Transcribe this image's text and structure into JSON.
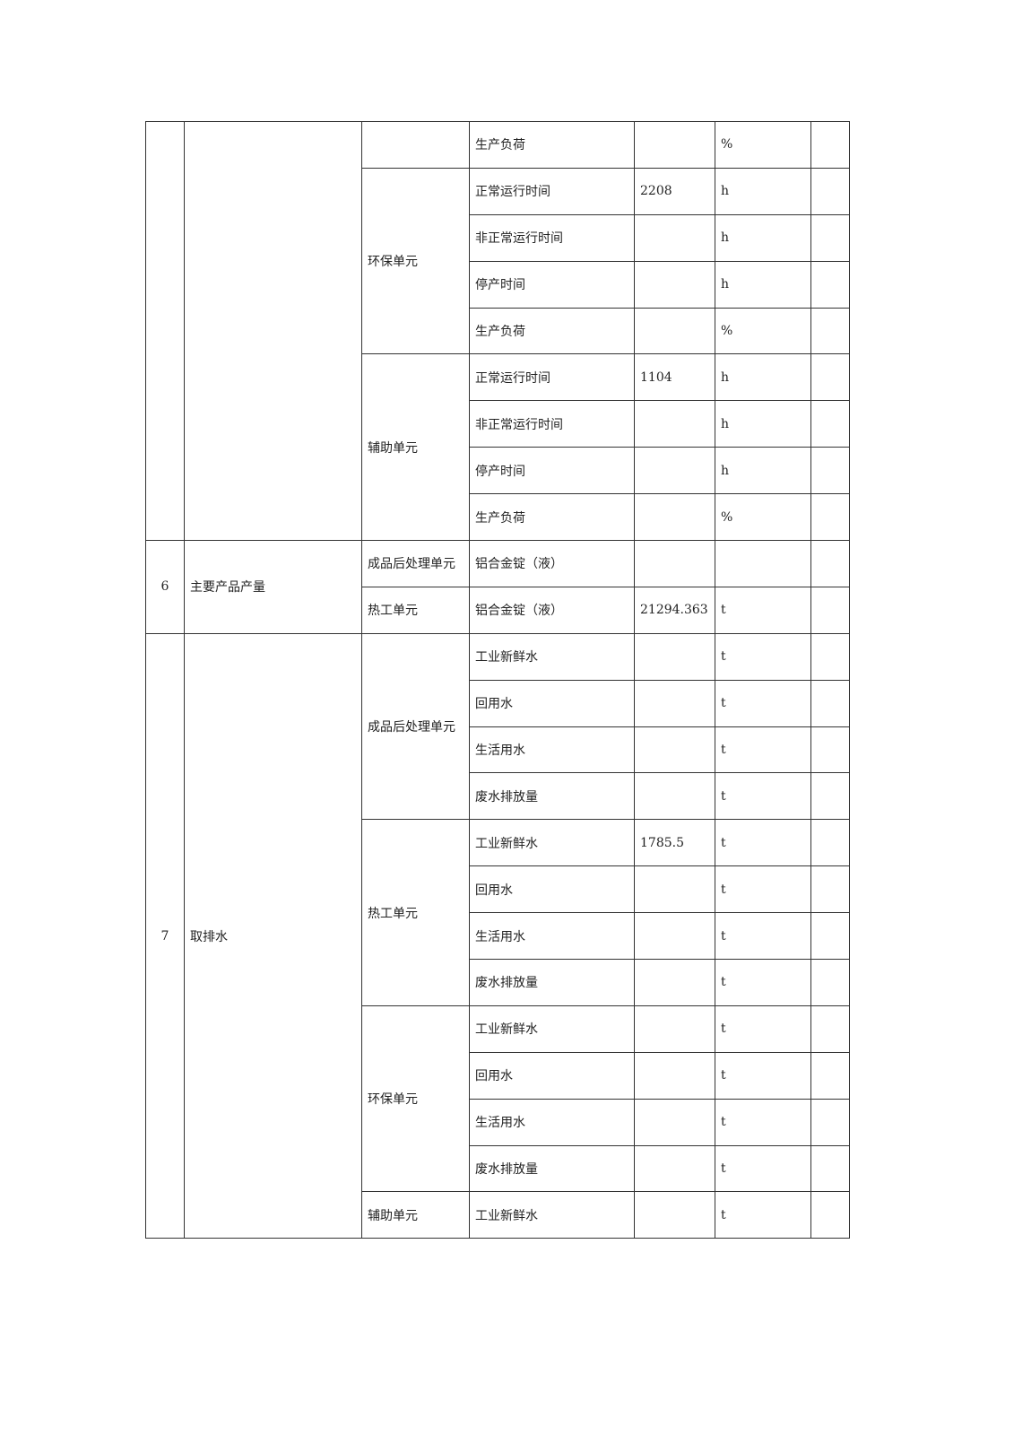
{
  "sections": [
    {
      "no": "",
      "name": "",
      "units": [
        {
          "name": "",
          "items": [
            {
              "item": "生产负荷",
              "value": "",
              "unit": "%"
            }
          ]
        },
        {
          "name": "环保单元",
          "items": [
            {
              "item": "正常运行时间",
              "value": "2208",
              "unit": "h"
            },
            {
              "item": "非正常运行时间",
              "value": "",
              "unit": "h"
            },
            {
              "item": "停产时间",
              "value": "",
              "unit": "h"
            },
            {
              "item": "生产负荷",
              "value": "",
              "unit": "%"
            }
          ]
        },
        {
          "name": "辅助单元",
          "items": [
            {
              "item": "正常运行时间",
              "value": "1104",
              "unit": "h"
            },
            {
              "item": "非正常运行时间",
              "value": "",
              "unit": "h"
            },
            {
              "item": "停产时间",
              "value": "",
              "unit": "h"
            },
            {
              "item": "生产负荷",
              "value": "",
              "unit": "%"
            }
          ]
        }
      ]
    },
    {
      "no": "6",
      "name": "主要产品产量",
      "units": [
        {
          "name": "成品后处理单元",
          "items": [
            {
              "item": "铝合金锭（液）",
              "value": "",
              "unit": ""
            }
          ]
        },
        {
          "name": "热工单元",
          "items": [
            {
              "item": "铝合金锭（液）",
              "value": "21294.363",
              "unit": "t"
            }
          ]
        }
      ]
    },
    {
      "no": "7",
      "name": "取排水",
      "units": [
        {
          "name": "成品后处理单元",
          "items": [
            {
              "item": "工业新鲜水",
              "value": "",
              "unit": "t"
            },
            {
              "item": "回用水",
              "value": "",
              "unit": "t"
            },
            {
              "item": "生活用水",
              "value": "",
              "unit": "t"
            },
            {
              "item": "废水排放量",
              "value": "",
              "unit": "t"
            }
          ]
        },
        {
          "name": "热工单元",
          "items": [
            {
              "item": "工业新鲜水",
              "value": "1785.5",
              "unit": "t"
            },
            {
              "item": "回用水",
              "value": "",
              "unit": "t"
            },
            {
              "item": "生活用水",
              "value": "",
              "unit": "t"
            },
            {
              "item": "废水排放量",
              "value": "",
              "unit": "t"
            }
          ]
        },
        {
          "name": "环保单元",
          "items": [
            {
              "item": "工业新鲜水",
              "value": "",
              "unit": "t"
            },
            {
              "item": "回用水",
              "value": "",
              "unit": "t"
            },
            {
              "item": "生活用水",
              "value": "",
              "unit": "t"
            },
            {
              "item": "废水排放量",
              "value": "",
              "unit": "t"
            }
          ]
        },
        {
          "name": "辅助单元",
          "items": [
            {
              "item": "工业新鲜水",
              "value": "",
              "unit": "t"
            }
          ]
        }
      ]
    }
  ]
}
